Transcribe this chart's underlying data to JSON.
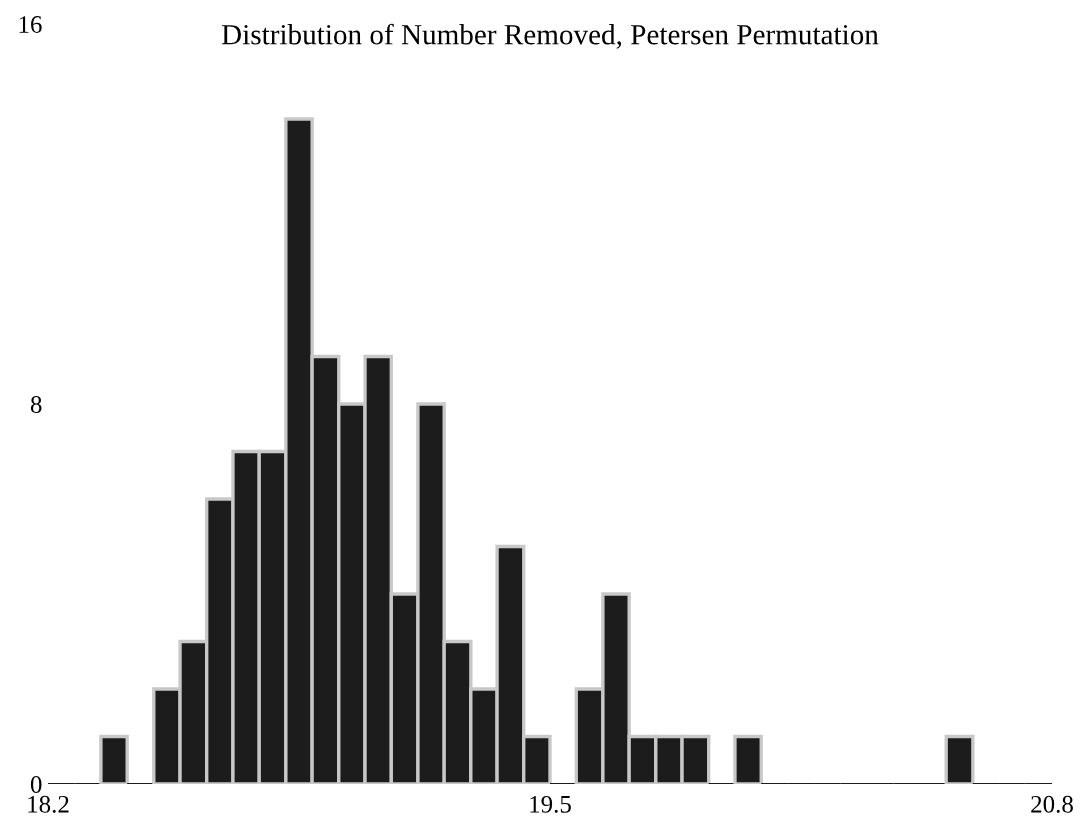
{
  "chart_data": {
    "type": "histogram",
    "title": "Distribution of Number Removed, Petersen Permutation",
    "bins": [
      18.2,
      18.268,
      18.337,
      18.405,
      18.474,
      18.542,
      18.611,
      18.679,
      18.747,
      18.816,
      18.884,
      18.953,
      19.021,
      19.089,
      19.158,
      19.226,
      19.295,
      19.363,
      19.432,
      19.5,
      19.568,
      19.637,
      19.705,
      19.774,
      19.842,
      19.911,
      19.979,
      20.047,
      20.116,
      20.184,
      20.253,
      20.321,
      20.389,
      20.458,
      20.526,
      20.595,
      20.663,
      20.732,
      20.8
    ],
    "values": [
      0,
      0,
      1,
      0,
      2,
      3,
      6,
      7,
      7,
      14,
      9,
      8,
      9,
      4,
      8,
      3,
      2,
      5,
      1,
      0,
      2,
      4,
      1,
      1,
      1,
      0,
      1,
      0,
      0,
      0,
      0,
      0,
      0,
      0,
      1,
      0,
      0,
      0
    ],
    "color": "#1c1c1c",
    "xlim": [
      18.2,
      20.8
    ],
    "xticks": [
      18.2,
      19.5,
      20.8
    ],
    "ylim": [
      0,
      16
    ],
    "yticks": [
      0,
      8,
      16
    ],
    "grid": false
  }
}
